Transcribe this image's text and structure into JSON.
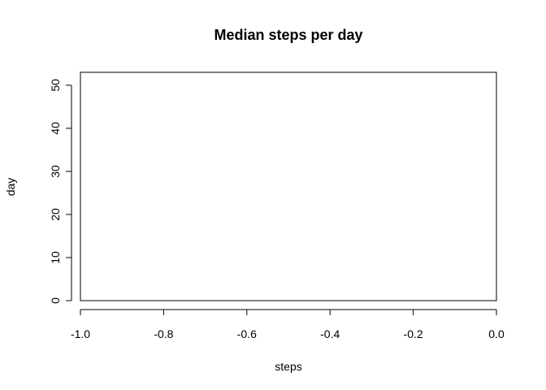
{
  "chart_data": {
    "type": "scatter",
    "title": "Median steps per day",
    "xlabel": "steps",
    "ylabel": "day",
    "xlim": [
      -1.0,
      0.0
    ],
    "ylim": [
      0,
      53
    ],
    "x_ticks": [
      "-1.0",
      "-0.8",
      "-0.6",
      "-0.4",
      "-0.2",
      "0.0"
    ],
    "x_tick_values": [
      -1.0,
      -0.8,
      -0.6,
      -0.4,
      -0.2,
      0.0
    ],
    "y_ticks": [
      "0",
      "10",
      "20",
      "30",
      "40",
      "50"
    ],
    "y_tick_values": [
      0,
      10,
      20,
      30,
      40,
      50
    ],
    "grid": false,
    "series": [
      {
        "x": [],
        "y": []
      }
    ]
  }
}
